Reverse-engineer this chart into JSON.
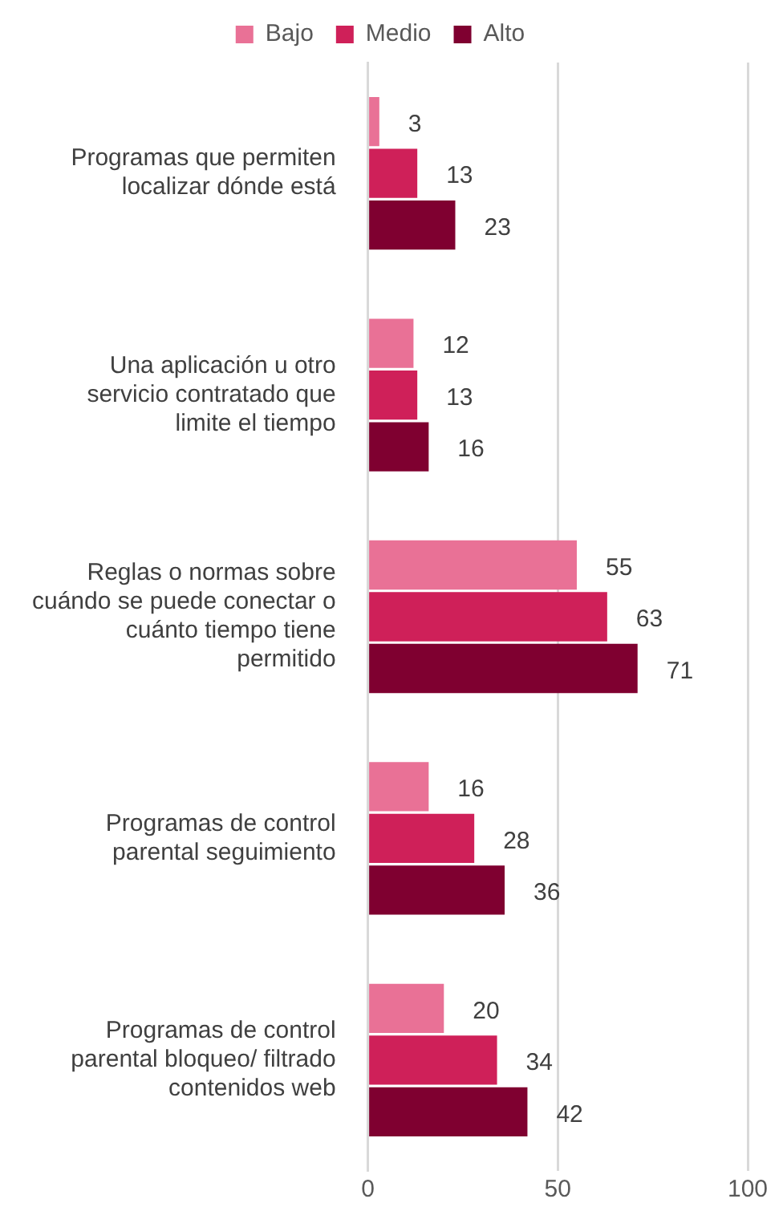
{
  "chart_data": {
    "type": "bar",
    "orientation": "horizontal",
    "categories": [
      "Programas que permiten localizar dónde está",
      "Una aplicación u otro servicio contratado que limite el tiempo",
      "Reglas o normas sobre cuándo se puede conectar o cuánto tiempo tiene permitido",
      "Programas de control parental seguimiento",
      "Programas de control parental bloqueo/ filtrado contenidos web"
    ],
    "series": [
      {
        "name": "Bajo",
        "color": "#e97196",
        "values": [
          3,
          12,
          55,
          16,
          20
        ]
      },
      {
        "name": "Medio",
        "color": "#cf2059",
        "values": [
          13,
          13,
          63,
          28,
          34
        ]
      },
      {
        "name": "Alto",
        "color": "#7f0030",
        "values": [
          23,
          16,
          71,
          36,
          42
        ]
      }
    ],
    "xlim": [
      0,
      100
    ],
    "xticks": [
      0,
      50,
      100
    ],
    "grid": "x",
    "legend": "top",
    "data_labels": true
  }
}
